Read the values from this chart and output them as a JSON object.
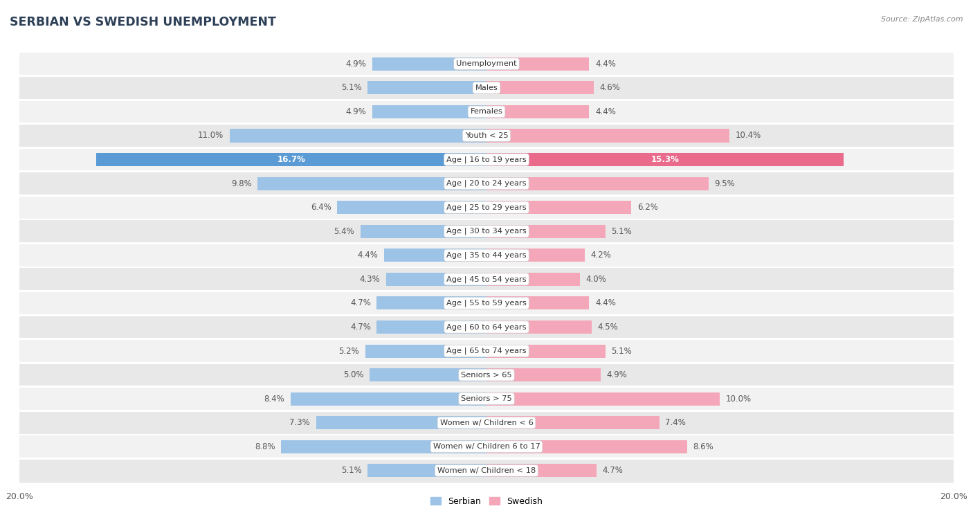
{
  "title": "SERBIAN VS SWEDISH UNEMPLOYMENT",
  "source": "Source: ZipAtlas.com",
  "categories": [
    "Unemployment",
    "Males",
    "Females",
    "Youth < 25",
    "Age | 16 to 19 years",
    "Age | 20 to 24 years",
    "Age | 25 to 29 years",
    "Age | 30 to 34 years",
    "Age | 35 to 44 years",
    "Age | 45 to 54 years",
    "Age | 55 to 59 years",
    "Age | 60 to 64 years",
    "Age | 65 to 74 years",
    "Seniors > 65",
    "Seniors > 75",
    "Women w/ Children < 6",
    "Women w/ Children 6 to 17",
    "Women w/ Children < 18"
  ],
  "serbian": [
    4.9,
    5.1,
    4.9,
    11.0,
    16.7,
    9.8,
    6.4,
    5.4,
    4.4,
    4.3,
    4.7,
    4.7,
    5.2,
    5.0,
    8.4,
    7.3,
    8.8,
    5.1
  ],
  "swedish": [
    4.4,
    4.6,
    4.4,
    10.4,
    15.3,
    9.5,
    6.2,
    5.1,
    4.2,
    4.0,
    4.4,
    4.5,
    5.1,
    4.9,
    10.0,
    7.4,
    8.6,
    4.7
  ],
  "serbian_color": "#9dc3e6",
  "swedish_color": "#f4a7b9",
  "serbian_color_dark": "#5b9bd5",
  "swedish_color_dark": "#e96a8a",
  "row_bg_odd": "#f2f2f2",
  "row_bg_even": "#e8e8e8",
  "row_separator": "#ffffff",
  "max_val": 20.0,
  "bar_height": 0.55,
  "label_box_color": "#ffffff",
  "label_box_edge": "#dddddd",
  "legend_serbian": "Serbian",
  "legend_swedish": "Swedish",
  "value_label_color": "#555555",
  "white_label_rows": [
    4
  ],
  "title_color": "#2e4057",
  "source_color": "#888888"
}
